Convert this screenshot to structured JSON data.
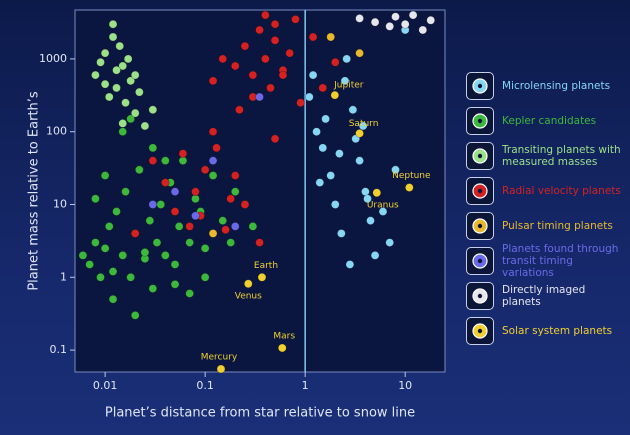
{
  "chart_data": {
    "type": "scatter",
    "x_label": "Planet’s distance from star relative to snow line",
    "y_label": "Planet mass relative to Earth’s",
    "log_x": true,
    "log_y": true,
    "xlim": [
      0.005,
      25
    ],
    "ylim": [
      0.05,
      4700
    ],
    "xticks": [
      0.01,
      0.1,
      1,
      10
    ],
    "yticks": [
      0.1,
      1,
      10,
      100,
      1000
    ],
    "snow_line": 1,
    "series": [
      {
        "name": "Microlensing planets",
        "color": "#86d6f4",
        "x": [
          1.1,
          1.3,
          1.5,
          1.8,
          2,
          2.3,
          2.6,
          3,
          3.5,
          4,
          4.5,
          5,
          6,
          7,
          8,
          2.5,
          1.6,
          3.2,
          4.2,
          1.2,
          2.8,
          1.4,
          2.2,
          10,
          3.8
        ],
        "values": [
          300,
          100,
          60,
          25,
          10,
          4,
          1000,
          200,
          40,
          15,
          6,
          2,
          8,
          3,
          30,
          500,
          150,
          80,
          12,
          600,
          1.5,
          20,
          50,
          2500,
          120
        ]
      },
      {
        "name": "Kepler candidates",
        "color": "#3cb83c",
        "x": [
          0.006,
          0.007,
          0.008,
          0.009,
          0.01,
          0.011,
          0.012,
          0.013,
          0.015,
          0.016,
          0.018,
          0.02,
          0.022,
          0.025,
          0.028,
          0.03,
          0.033,
          0.036,
          0.04,
          0.045,
          0.05,
          0.055,
          0.06,
          0.07,
          0.08,
          0.09,
          0.1,
          0.12,
          0.15,
          0.18,
          0.2,
          0.25,
          0.3,
          0.012,
          0.02,
          0.03,
          0.008,
          0.015,
          0.05,
          0.1,
          0.04,
          0.025,
          0.07,
          0.01,
          0.018
        ],
        "values": [
          2,
          1.5,
          3,
          1,
          2.5,
          5,
          1.2,
          8,
          2,
          15,
          1,
          4,
          30,
          1.8,
          6,
          60,
          3,
          10,
          2,
          20,
          1.5,
          5,
          40,
          3,
          12,
          8,
          2.5,
          25,
          6,
          3,
          15,
          10,
          5,
          0.5,
          0.3,
          0.7,
          12,
          100,
          0.8,
          1,
          40,
          2.2,
          0.6,
          25,
          150
        ]
      },
      {
        "name": "Transiting planets with measured masses",
        "color": "#9de08a",
        "x": [
          0.008,
          0.01,
          0.012,
          0.013,
          0.015,
          0.011,
          0.014,
          0.016,
          0.018,
          0.02,
          0.009,
          0.012,
          0.022,
          0.025,
          0.013,
          0.017,
          0.01,
          0.03,
          0.015,
          0.02
        ],
        "values": [
          600,
          1200,
          2000,
          400,
          800,
          300,
          1500,
          250,
          500,
          180,
          900,
          3000,
          350,
          120,
          700,
          1000,
          450,
          200,
          130,
          600
        ]
      },
      {
        "name": "Radial velocity planets",
        "color": "#d42222",
        "x": [
          0.2,
          0.25,
          0.3,
          0.35,
          0.4,
          0.45,
          0.5,
          0.6,
          0.7,
          0.8,
          0.3,
          0.22,
          0.5,
          0.15,
          0.12,
          1.2,
          1.5,
          0.9,
          0.4,
          0.6,
          0.04,
          0.05,
          0.06,
          0.08,
          0.1,
          0.13,
          0.18,
          0.07,
          0.03,
          0.12,
          0.25,
          0.35,
          0.2,
          0.09,
          0.5,
          2,
          0.02,
          0.16
        ],
        "values": [
          800,
          1500,
          600,
          2500,
          1000,
          400,
          1800,
          700,
          1200,
          3500,
          300,
          200,
          3000,
          1000,
          500,
          2000,
          400,
          250,
          4000,
          600,
          20,
          8,
          50,
          15,
          30,
          60,
          12,
          5,
          40,
          100,
          10,
          3,
          25,
          7,
          80,
          900,
          4,
          4.5
        ]
      },
      {
        "name": "Pulsar timing planets",
        "color": "#e8b830",
        "x": [
          0.12,
          1.8,
          3.5
        ],
        "values": [
          4,
          2000,
          1200
        ]
      },
      {
        "name": "Planets found through transit timing variations",
        "color": "#6a6ae8",
        "x": [
          0.03,
          0.05,
          0.08,
          0.12,
          0.2,
          0.35
        ],
        "values": [
          10,
          15,
          7,
          40,
          5,
          300
        ]
      },
      {
        "name": "Directly imaged planets",
        "color": "#e6e6ee",
        "x": [
          5,
          8,
          10,
          12,
          15,
          18,
          3.5,
          7
        ],
        "values": [
          3200,
          3800,
          3000,
          4000,
          2500,
          3400,
          3600,
          2800
        ]
      },
      {
        "name": "Solar system planets",
        "color": "#f0d030",
        "x": [
          0.144,
          0.27,
          0.37,
          0.59,
          1.98,
          3.5,
          5.2,
          11
        ],
        "values": [
          0.055,
          0.815,
          1,
          0.107,
          318,
          95,
          14.5,
          17.1
        ],
        "labels": [
          "Mercury",
          "Venus",
          "Earth",
          "Mars",
          "Jupiter",
          "Saturn",
          "Uranus",
          "Neptune"
        ]
      }
    ]
  }
}
